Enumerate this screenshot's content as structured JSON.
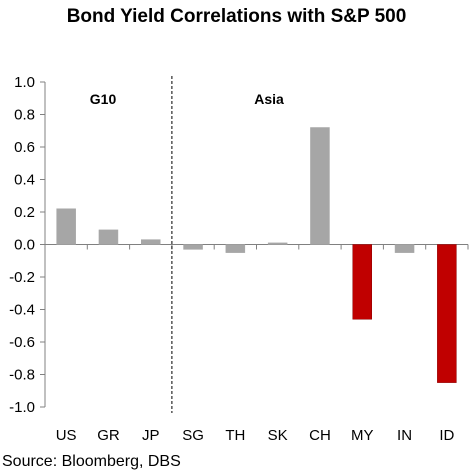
{
  "chart_data": {
    "type": "bar",
    "title": "Bond Yield Correlations with S&P 500",
    "categories": [
      "US",
      "GR",
      "JP",
      "SG",
      "TH",
      "SK",
      "CH",
      "MY",
      "IN",
      "ID"
    ],
    "values": [
      0.22,
      0.09,
      0.03,
      -0.03,
      -0.05,
      0.01,
      0.72,
      -0.46,
      -0.05,
      -0.85
    ],
    "bar_colors": [
      "#a6a6a6",
      "#a6a6a6",
      "#a6a6a6",
      "#a6a6a6",
      "#a6a6a6",
      "#a6a6a6",
      "#a6a6a6",
      "#c00000",
      "#a6a6a6",
      "#c00000"
    ],
    "ylim": [
      -1.0,
      1.0
    ],
    "yticks": [
      "1.0",
      "0.8",
      "0.6",
      "0.4",
      "0.2",
      "0.0",
      "-0.2",
      "-0.4",
      "-0.6",
      "-0.8",
      "-1.0"
    ],
    "xlabel": "",
    "ylabel": "",
    "grid": false,
    "legend": "none",
    "group_labels": [
      "G10",
      "Asia"
    ],
    "group_divider_after_category": "JP"
  },
  "source": "Source: Bloomberg, DBS"
}
